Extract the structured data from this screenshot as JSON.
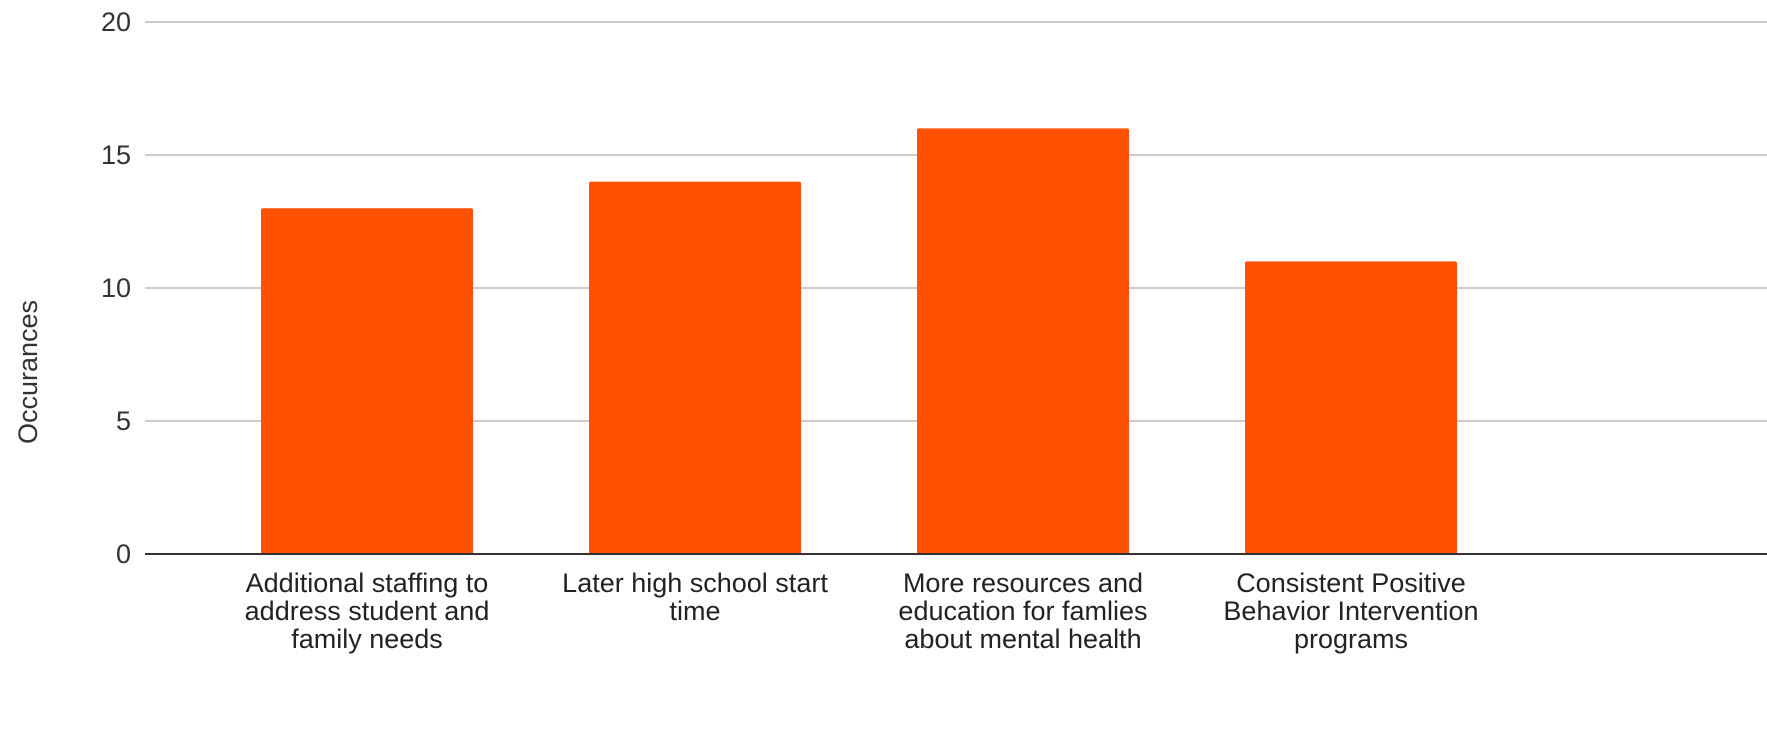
{
  "chart_data": {
    "type": "bar",
    "categories": [
      [
        "Additional staffing to",
        "address student and",
        "family needs"
      ],
      [
        "Later high school start",
        "time"
      ],
      [
        "More resources and",
        "education for famlies",
        "about mental health"
      ],
      [
        "Consistent Positive",
        "Behavior Intervention",
        "programs"
      ]
    ],
    "values": [
      13,
      14,
      16,
      11
    ],
    "ylabel": "Occurances",
    "ylim": [
      0,
      20
    ],
    "yticks": [
      "0",
      "5",
      "10",
      "15",
      "20"
    ],
    "grid": true,
    "bar_color": "#ff5100",
    "gridline_color": "#cccccc",
    "axis_color": "#333333"
  }
}
